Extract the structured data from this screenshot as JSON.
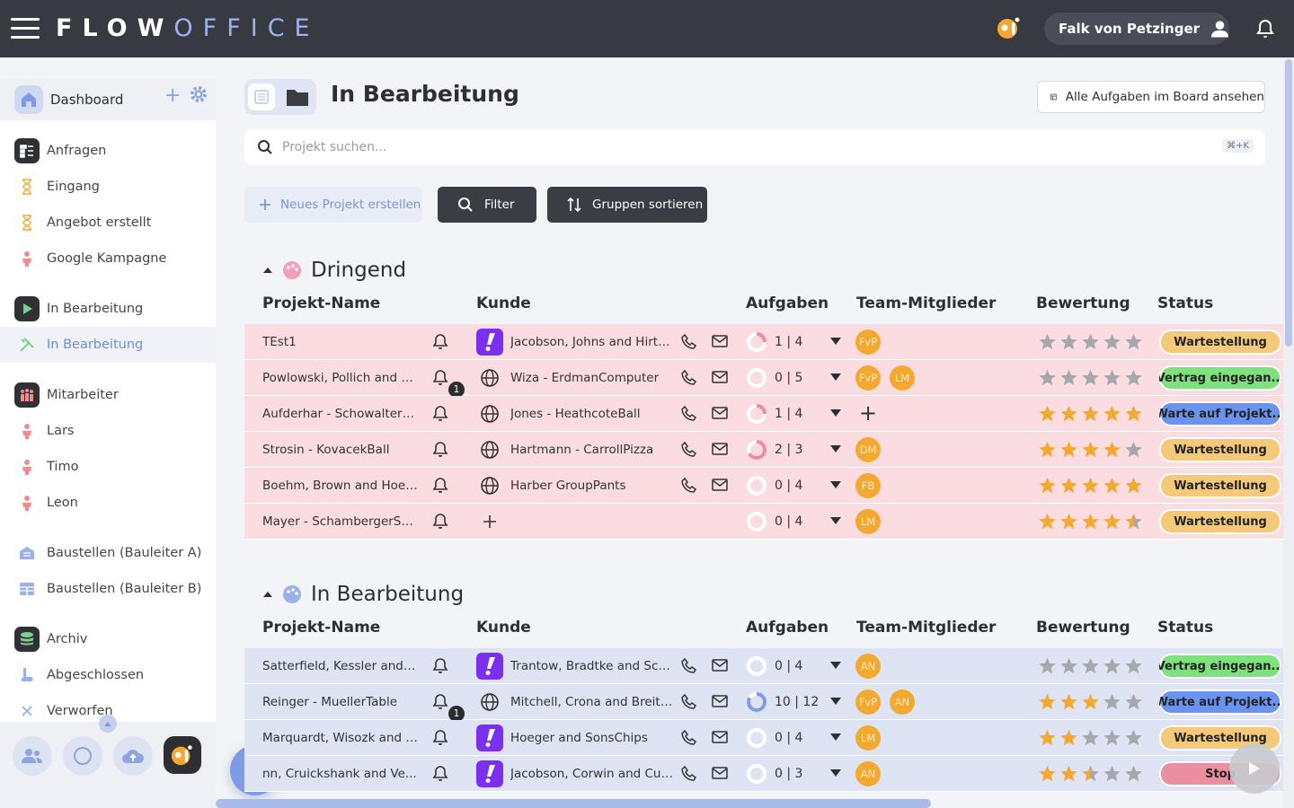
{
  "topbar": {
    "brand_bold": "FLOW",
    "brand_light": "OFFICE",
    "user_name": "Falk von Petzinger"
  },
  "sidebar": {
    "dashboard_label": "Dashboard",
    "items": [
      {
        "label": "Anfragen",
        "icon": "request-icon"
      },
      {
        "label": "Eingang",
        "icon": "hourglass-icon"
      },
      {
        "label": "Angebot erstellt",
        "icon": "hourglass-icon"
      },
      {
        "label": "Google Kampagne",
        "icon": "person-icon"
      },
      {
        "label": "In Bearbeitung",
        "icon": "play-icon"
      },
      {
        "label": "In Bearbeitung",
        "icon": "tools-icon"
      },
      {
        "label": "Mitarbeiter",
        "icon": "team-icon"
      },
      {
        "label": "Lars",
        "icon": "person-icon"
      },
      {
        "label": "Timo",
        "icon": "person-icon"
      },
      {
        "label": "Leon",
        "icon": "person-icon"
      },
      {
        "label": "Baustellen (Bauleiter A)",
        "icon": "building-icon"
      },
      {
        "label": "Baustellen (Bauleiter B)",
        "icon": "grid-icon"
      },
      {
        "label": "Archiv",
        "icon": "database-icon"
      },
      {
        "label": "Abgeschlossen",
        "icon": "boot-icon"
      },
      {
        "label": "Verworfen",
        "icon": "close-icon"
      }
    ]
  },
  "page": {
    "title": "In Bearbeitung",
    "board_button": "Alle Aufgaben im Board ansehen",
    "search_placeholder": "Projekt suchen...",
    "search_shortcut": "⌘+K",
    "new_project": "Neues Projekt erstellen",
    "filter": "Filter",
    "sort": "Gruppen sortieren"
  },
  "columns": {
    "name": "Projekt-Name",
    "kunde": "Kunde",
    "aufgaben": "Aufgaben",
    "team": "Team-Mitglieder",
    "bewertung": "Bewertung",
    "status": "Status"
  },
  "accent": {
    "pink_row": "#fbdde1",
    "blue_row": "#dfe4f5",
    "brand": "#7f9be6",
    "avatar": "#f3a92f"
  },
  "groups": [
    {
      "title": "Dringend",
      "rows": [
        {
          "name": "TEst1",
          "badge": "",
          "kunde_icon": "exclaim",
          "kunde": "Jacobson, Johns and HirtheS...",
          "tasks": "1 | 4",
          "progress": 0.25,
          "members": [
            "FvP"
          ],
          "rating": 0,
          "status": "Wartestellung"
        },
        {
          "name": "Powlowski, Pollich and Blo...",
          "badge": "1",
          "kunde_icon": "globe",
          "kunde": "Wiza - ErdmanComputer",
          "tasks": "0 | 5",
          "progress": 0,
          "members": [
            "FvP",
            "LM"
          ],
          "rating": 0,
          "status": "Vertrag eingegan..."
        },
        {
          "name": "Aufderhar - SchowalterBall ...",
          "badge": "",
          "kunde_icon": "globe",
          "kunde": "Jones - HeathcoteBall",
          "tasks": "1 | 4",
          "progress": 0.25,
          "members": [],
          "rating": 5,
          "status": "Warte auf Projekt..."
        },
        {
          "name": "Strosin - KovacekBall",
          "badge": "",
          "kunde_icon": "globe",
          "kunde": "Hartmann - CarrollPizza",
          "tasks": "2 | 3",
          "progress": 0.67,
          "members": [
            "DM"
          ],
          "rating": 4,
          "status": "Wartestellung"
        },
        {
          "name": "Boehm, Brown and Hoege...",
          "badge": "",
          "kunde_icon": "globe",
          "kunde": "Harber GroupPants",
          "tasks": "0 | 4",
          "progress": 0,
          "members": [
            "FB"
          ],
          "rating": 5,
          "status": "Wartestellung"
        },
        {
          "name": "Mayer - SchambergerShoes",
          "badge": "",
          "kunde_icon": "add",
          "kunde": "",
          "tasks": "0 | 4",
          "progress": 0,
          "members": [
            "LM"
          ],
          "rating": 4.5,
          "status": "Wartestellung"
        }
      ]
    },
    {
      "title": "In Bearbeitung",
      "rows": [
        {
          "name": "Satterfield, Kessler and Lar...",
          "badge": "",
          "kunde_icon": "exclaim",
          "kunde": "Trantow, Bradtke and Schmid...",
          "tasks": "0 | 4",
          "progress": 0,
          "members": [
            "AN"
          ],
          "rating": 0,
          "status": "Vertrag eingegan..."
        },
        {
          "name": "Reinger - MuellerTable",
          "badge": "1",
          "kunde_icon": "globe",
          "kunde": "Mitchell, Crona and Breitenb...",
          "tasks": "10 | 12",
          "progress": 0.83,
          "members": [
            "FvP",
            "AN"
          ],
          "rating": 3,
          "status": "Warte auf Projekt..."
        },
        {
          "name": "Marquardt, Wisozk and Br...",
          "badge": "",
          "kunde_icon": "exclaim",
          "kunde": "Hoeger and SonsChips",
          "tasks": "0 | 4",
          "progress": 0,
          "members": [
            "LM"
          ],
          "rating": 2,
          "status": "Wartestellung"
        },
        {
          "name": "nn, Cruickshank and Ve...",
          "badge": "",
          "kunde_icon": "exclaim",
          "kunde": "Jacobson, Corwin and Cum...",
          "tasks": "0 | 3",
          "progress": 0,
          "members": [
            "AN"
          ],
          "rating": 2.5,
          "status": "Stop"
        }
      ]
    }
  ]
}
